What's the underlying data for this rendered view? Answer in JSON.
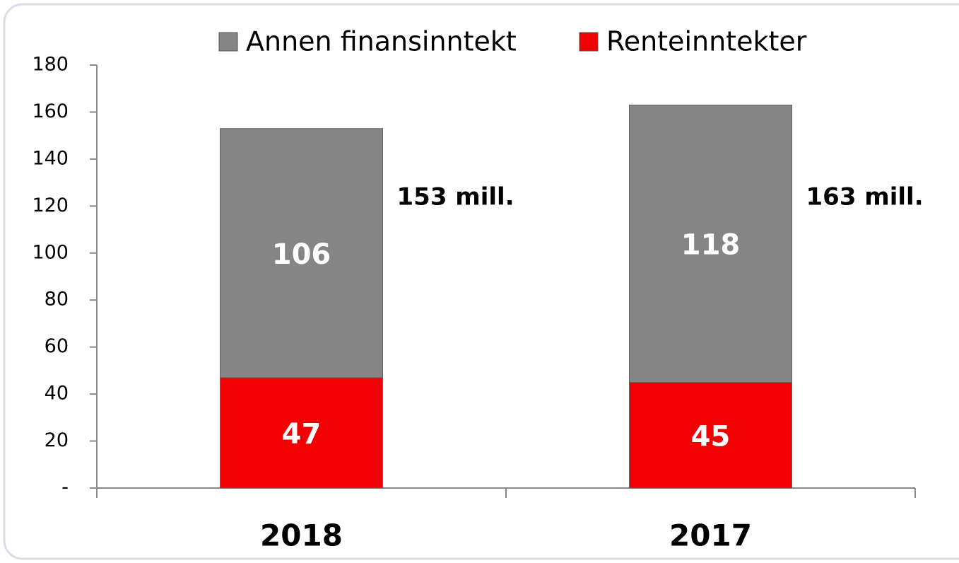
{
  "chart_data": {
    "type": "stacked_bar",
    "categories": [
      "2018",
      "2017"
    ],
    "series": [
      {
        "name": "Renteinntekter",
        "color": "#f00000",
        "values": [
          47,
          45
        ]
      },
      {
        "name": "Annen finansinntekt",
        "color": "#858585",
        "values": [
          106,
          118
        ]
      }
    ],
    "ylim": [
      0,
      180
    ],
    "yticks": [
      {
        "value": 0,
        "label": "-"
      },
      20,
      40,
      60,
      80,
      100,
      120,
      140,
      160,
      180
    ],
    "annotations": [
      "153 mill.",
      "163 mill."
    ],
    "legend": "top"
  }
}
